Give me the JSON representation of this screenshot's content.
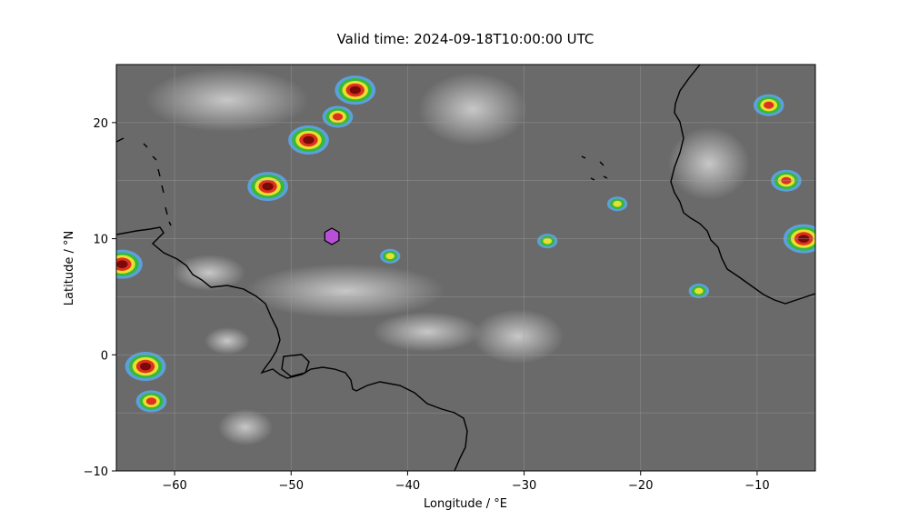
{
  "title": "Valid time: 2024-09-18T10:00:00 UTC",
  "xaxis": {
    "label": "Longitude / °E",
    "range": [
      -65,
      -5
    ],
    "ticks": [
      -60,
      -50,
      -40,
      -30,
      -20,
      -10
    ],
    "tick_labels": [
      "−60",
      "−50",
      "−40",
      "−30",
      "−20",
      "−10"
    ]
  },
  "yaxis": {
    "label": "Latitude / °N",
    "range": [
      -10,
      25
    ],
    "ticks": [
      -10,
      0,
      10,
      20
    ],
    "tick_labels": [
      "−10",
      "0",
      "10",
      "20"
    ]
  },
  "grid": true,
  "marker": {
    "lon": -46.5,
    "lat": 10.2,
    "shape": "hexagon",
    "color": "#b94fd6"
  },
  "colors": {
    "background_gray": "#6a6a6a",
    "coastline": "#000000"
  },
  "chart_data": {
    "type": "heatmap",
    "description_free": true,
    "xlim": [
      -65,
      -5
    ],
    "ylim": [
      -10,
      25
    ],
    "cloud_systems": [
      {
        "lon": -48.5,
        "lat": 18.5,
        "intensity": 3
      },
      {
        "lon": -52.0,
        "lat": 14.5,
        "intensity": 3
      },
      {
        "lon": -44.5,
        "lat": 22.8,
        "intensity": 3
      },
      {
        "lon": -46.0,
        "lat": 20.5,
        "intensity": 2
      },
      {
        "lon": -64.5,
        "lat": 7.8,
        "intensity": 3
      },
      {
        "lon": -62.5,
        "lat": -1.0,
        "intensity": 3
      },
      {
        "lon": -62.0,
        "lat": -4.0,
        "intensity": 2
      },
      {
        "lon": -6.0,
        "lat": 10.0,
        "intensity": 3
      },
      {
        "lon": -7.5,
        "lat": 15.0,
        "intensity": 2
      },
      {
        "lon": -9.0,
        "lat": 21.5,
        "intensity": 2
      },
      {
        "lon": -22.0,
        "lat": 13.0,
        "intensity": 1
      },
      {
        "lon": -28.0,
        "lat": 9.8,
        "intensity": 1
      },
      {
        "lon": -15.0,
        "lat": 5.5,
        "intensity": 1
      },
      {
        "lon": -41.5,
        "lat": 8.5,
        "intensity": 1
      }
    ]
  }
}
